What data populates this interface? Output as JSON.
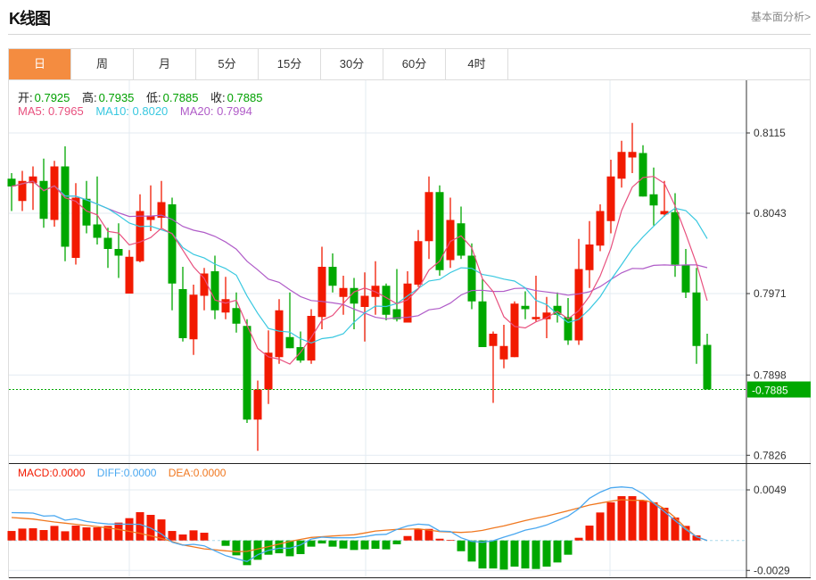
{
  "header": {
    "title": "K线图",
    "link": "基本面分析>"
  },
  "tabs": [
    {
      "label": "日",
      "active": true
    },
    {
      "label": "周",
      "active": false
    },
    {
      "label": "月",
      "active": false
    },
    {
      "label": "5分",
      "active": false
    },
    {
      "label": "15分",
      "active": false
    },
    {
      "label": "30分",
      "active": false
    },
    {
      "label": "60分",
      "active": false
    },
    {
      "label": "4时",
      "active": false
    }
  ],
  "ohlc_info": {
    "open_label": "开:",
    "open": "0.7925",
    "high_label": "高:",
    "high": "0.7935",
    "low_label": "低:",
    "low": "0.7885",
    "close_label": "收:",
    "close": "0.7885"
  },
  "ma_info": {
    "ma5": "MA5: 0.7965",
    "ma10": "MA10: 0.8020",
    "ma20": "MA20: 0.7994"
  },
  "macd_info": {
    "macd": "MACD:0.0000",
    "diff": "DIFF:0.0000",
    "dea": "DEA:0.0000"
  },
  "colors": {
    "up": "#f21a00",
    "down": "#00a800",
    "ma5": "#e8507e",
    "ma10": "#39c8e0",
    "ma20": "#b05cc8",
    "diff": "#4aa8f0",
    "dea": "#f07820",
    "active_tab": "#f48c40"
  },
  "chart_data": [
    {
      "type": "candlestick",
      "y_ticks": [
        "0.8115",
        "0.8043",
        "0.7971",
        "0.7898",
        "0.7826"
      ],
      "ylim": [
        0.7826,
        0.8115
      ],
      "current_price": "0.7885",
      "ma_periods": [
        5,
        10,
        20
      ],
      "candles": [
        [
          0.8074,
          0.8079,
          0.8045,
          0.8067
        ],
        [
          0.8054,
          0.8081,
          0.8045,
          0.8072
        ],
        [
          0.807,
          0.8085,
          0.8046,
          0.8076
        ],
        [
          0.8072,
          0.8092,
          0.803,
          0.8038
        ],
        [
          0.8037,
          0.809,
          0.8031,
          0.8085
        ],
        [
          0.8085,
          0.8103,
          0.8,
          0.8013
        ],
        [
          0.8003,
          0.807,
          0.7997,
          0.8057
        ],
        [
          0.8056,
          0.8072,
          0.8025,
          0.8032
        ],
        [
          0.8033,
          0.8076,
          0.8015,
          0.8021
        ],
        [
          0.8021,
          0.803,
          0.7994,
          0.8011
        ],
        [
          0.8011,
          0.8034,
          0.7985,
          0.8005
        ],
        [
          0.7971,
          0.801,
          0.7971,
          0.8004
        ],
        [
          0.8,
          0.806,
          0.7999,
          0.8045
        ],
        [
          0.8037,
          0.8068,
          0.8027,
          0.8041
        ],
        [
          0.8039,
          0.8072,
          0.8029,
          0.8053
        ],
        [
          0.8051,
          0.8057,
          0.7956,
          0.798
        ],
        [
          0.7975,
          0.7995,
          0.7928,
          0.7931
        ],
        [
          0.793,
          0.7979,
          0.7916,
          0.797
        ],
        [
          0.7969,
          0.7994,
          0.7956,
          0.7989
        ],
        [
          0.7991,
          0.8005,
          0.7948,
          0.7956
        ],
        [
          0.7954,
          0.7986,
          0.7948,
          0.7966
        ],
        [
          0.7958,
          0.7972,
          0.7936,
          0.7944
        ],
        [
          0.7942,
          0.7948,
          0.7855,
          0.7858
        ],
        [
          0.7858,
          0.7893,
          0.783,
          0.7885
        ],
        [
          0.7885,
          0.7938,
          0.7872,
          0.7918
        ],
        [
          0.7914,
          0.7966,
          0.7908,
          0.7956
        ],
        [
          0.7932,
          0.7972,
          0.7922,
          0.7922
        ],
        [
          0.7923,
          0.7937,
          0.7909,
          0.7911
        ],
        [
          0.7911,
          0.7957,
          0.7908,
          0.7951
        ],
        [
          0.795,
          0.8013,
          0.7939,
          0.7995
        ],
        [
          0.7995,
          0.8007,
          0.7972,
          0.7978
        ],
        [
          0.7968,
          0.7987,
          0.7952,
          0.7976
        ],
        [
          0.7976,
          0.7985,
          0.7939,
          0.7962
        ],
        [
          0.7959,
          0.799,
          0.7928,
          0.7969
        ],
        [
          0.7968,
          0.8,
          0.7952,
          0.7978
        ],
        [
          0.7978,
          0.798,
          0.7947,
          0.7952
        ],
        [
          0.7957,
          0.7993,
          0.7946,
          0.7948
        ],
        [
          0.7945,
          0.7991,
          0.7945,
          0.798
        ],
        [
          0.7979,
          0.8028,
          0.7977,
          0.8018
        ],
        [
          0.8018,
          0.8076,
          0.8002,
          0.8062
        ],
        [
          0.8062,
          0.8068,
          0.7987,
          0.7992
        ],
        [
          0.8001,
          0.8057,
          0.7994,
          0.8037
        ],
        [
          0.8034,
          0.8049,
          0.8002,
          0.8005
        ],
        [
          0.8005,
          0.8016,
          0.7957,
          0.7964
        ],
        [
          0.7964,
          0.7984,
          0.7923,
          0.7923
        ],
        [
          0.7924,
          0.7937,
          0.7873,
          0.7935
        ],
        [
          0.7912,
          0.7943,
          0.7904,
          0.7924
        ],
        [
          0.7914,
          0.7964,
          0.7914,
          0.7962
        ],
        [
          0.796,
          0.7973,
          0.7948,
          0.7957
        ],
        [
          0.7948,
          0.7987,
          0.7946,
          0.795
        ],
        [
          0.7948,
          0.7968,
          0.7931,
          0.7954
        ],
        [
          0.796,
          0.7972,
          0.7945,
          0.7952
        ],
        [
          0.795,
          0.7967,
          0.7925,
          0.7929
        ],
        [
          0.7929,
          0.802,
          0.7925,
          0.7993
        ],
        [
          0.7992,
          0.8036,
          0.7976,
          0.8015
        ],
        [
          0.8014,
          0.8051,
          0.8009,
          0.8045
        ],
        [
          0.8036,
          0.8091,
          0.8025,
          0.8076
        ],
        [
          0.8074,
          0.8108,
          0.8066,
          0.8098
        ],
        [
          0.8093,
          0.8124,
          0.8079,
          0.8098
        ],
        [
          0.8097,
          0.8104,
          0.8058,
          0.8058
        ],
        [
          0.806,
          0.8084,
          0.8032,
          0.805
        ],
        [
          0.8042,
          0.8072,
          0.804,
          0.8045
        ],
        [
          0.8044,
          0.8061,
          0.7986,
          0.7997
        ],
        [
          0.7997,
          0.8011,
          0.7967,
          0.7972
        ],
        [
          0.7972,
          0.7994,
          0.7908,
          0.7924
        ],
        [
          0.7925,
          0.7935,
          0.7885,
          0.7885
        ]
      ]
    },
    {
      "type": "bar+line",
      "y_ticks": [
        "0.0049",
        "-0.0029"
      ],
      "ylim": [
        -0.0029,
        0.0049
      ],
      "macd_hist": [
        0.00092,
        0.00115,
        0.00118,
        0.00101,
        0.00141,
        0.00089,
        0.00144,
        0.00127,
        0.00127,
        0.00141,
        0.00173,
        0.00216,
        0.00274,
        0.00248,
        0.00204,
        0.00092,
        0.00058,
        0.00098,
        0.00075,
        0,
        -0.00052,
        -0.00144,
        -0.00239,
        -0.00187,
        -0.00138,
        -0.00124,
        -0.00153,
        -0.00132,
        -0.0006,
        -0.00029,
        -0.0006,
        -0.00078,
        -0.00092,
        -0.00086,
        -0.00081,
        -0.00086,
        -0.00037,
        0.00043,
        0.00112,
        0.00112,
        0.00017,
        6e-05,
        -0.00104,
        -0.00204,
        -0.00271,
        -0.00271,
        -0.00282,
        -0.00253,
        -0.00271,
        -0.00276,
        -0.00253,
        -0.00213,
        -0.00138,
        0.00026,
        0.00144,
        0.00271,
        0.00369,
        0.00429,
        0.00429,
        0.00389,
        0.00369,
        0.00317,
        0.00222,
        0.00141,
        0.00049,
        0
      ],
      "diff": [
        0.0027,
        0.00268,
        0.00265,
        0.00236,
        0.0024,
        0.00196,
        0.0021,
        0.00184,
        0.0017,
        0.0016,
        0.00158,
        0.00157,
        0.00156,
        0.0012,
        0.00063,
        -0.00017,
        -0.00046,
        -0.00037,
        -0.00052,
        -0.001,
        -0.00147,
        -0.00176,
        -0.00204,
        -0.00138,
        -0.00095,
        -0.00075,
        -0.00075,
        -0.00043,
        0.00014,
        0.00032,
        0.00026,
        0.00026,
        0.00026,
        0.00037,
        0.00055,
        0.0006,
        0.00107,
        0.00141,
        0.00158,
        0.0015,
        0.00092,
        0.00086,
        0.00026,
        -9e-05,
        -0.00017,
        -3e-05,
        0.00032,
        0.00063,
        0.001,
        0.0012,
        0.0015,
        0.00193,
        0.00236,
        0.00308,
        0.00409,
        0.00467,
        0.0051,
        0.00518,
        0.0051,
        0.00452,
        0.0036,
        0.00279,
        0.00193,
        0.00107,
        0.00035,
        0
      ],
      "dea": [
        0.00222,
        0.00215,
        0.00207,
        0.00193,
        0.00179,
        0.00168,
        0.00156,
        0.00145,
        0.00135,
        0.00121,
        0.00107,
        0.00088,
        0.00069,
        0.00045,
        0.0002,
        -0.0001,
        -0.00043,
        -0.00062,
        -0.00081,
        -0.0009,
        -0.001,
        -0.00109,
        -0.00105,
        -0.00082,
        -0.0006,
        -0.00035,
        -9e-05,
        0.0001,
        0.00029,
        0.00036,
        0.00043,
        0.00049,
        0.00055,
        0.00073,
        0.00092,
        0.001,
        0.00107,
        0.0011,
        0.00112,
        0.001,
        0.00086,
        0.00082,
        0.00078,
        0.00084,
        0.00098,
        0.0012,
        0.00141,
        0.00167,
        0.00193,
        0.00215,
        0.00236,
        0.00262,
        0.00288,
        0.00315,
        0.00343,
        0.00362,
        0.0038,
        0.00395,
        0.00389,
        0.00389,
        0.00366,
        0.00308,
        0.00222,
        0.0012,
        0.00035,
        0
      ]
    }
  ]
}
